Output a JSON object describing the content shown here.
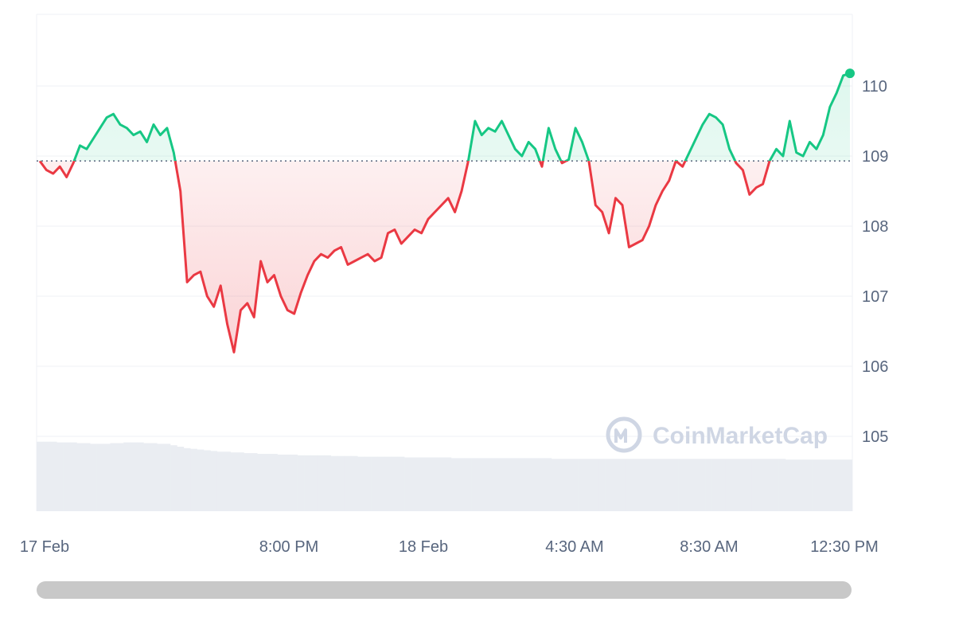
{
  "watermark": "CoinMarketCap",
  "colors": {
    "up": "#16c784",
    "down": "#ea3943",
    "baseline": "#58667e",
    "grid": "#eff2f5",
    "volume": "#eaedf2",
    "scrollbar": "#c8c8c8"
  },
  "chart_data": {
    "type": "line",
    "title": "",
    "xlabel": "",
    "ylabel": "",
    "ylim": [
      104.0,
      111.0
    ],
    "y_ticks": [
      "110",
      "109",
      "108",
      "107",
      "106",
      "105"
    ],
    "x_ticks": [
      "17 Feb",
      "8:00 PM",
      "18 Feb",
      "4:30 AM",
      "8:30 AM",
      "12:30 PM"
    ],
    "x_domain": [
      "2025-02-17T12:00",
      "2025-02-18T13:00"
    ],
    "baseline": 108.93,
    "grid": true,
    "legend": "none",
    "series": [
      {
        "values": [
          108.93,
          108.8,
          108.75,
          108.85,
          108.7,
          108.9,
          109.15,
          109.1,
          109.25,
          109.4,
          109.55,
          109.6,
          109.45,
          109.4,
          109.3,
          109.35,
          109.2,
          109.45,
          109.3,
          109.4,
          109.05,
          108.5,
          107.2,
          107.3,
          107.35,
          107.0,
          106.85,
          107.15,
          106.6,
          106.2,
          106.8,
          106.9,
          106.7,
          107.5,
          107.2,
          107.3,
          107.0,
          106.8,
          106.75,
          107.05,
          107.3,
          107.5,
          107.6,
          107.55,
          107.65,
          107.7,
          107.45,
          107.5,
          107.55,
          107.6,
          107.5,
          107.55,
          107.9,
          107.95,
          107.75,
          107.85,
          107.95,
          107.9,
          108.1,
          108.2,
          108.3,
          108.4,
          108.2,
          108.5,
          108.93,
          109.5,
          109.3,
          109.4,
          109.35,
          109.5,
          109.3,
          109.1,
          109.0,
          109.2,
          109.1,
          108.85,
          109.4,
          109.1,
          108.9,
          108.95,
          109.4,
          109.2,
          108.93,
          108.3,
          108.2,
          107.9,
          108.4,
          108.3,
          107.7,
          107.75,
          107.8,
          108.0,
          108.3,
          108.5,
          108.65,
          108.93,
          108.85,
          109.05,
          109.25,
          109.45,
          109.6,
          109.55,
          109.45,
          109.1,
          108.9,
          108.8,
          108.45,
          108.55,
          108.6,
          108.93,
          109.1,
          109.0,
          109.5,
          109.05,
          109.0,
          109.2,
          109.1,
          109.3,
          109.7,
          109.9,
          110.15,
          110.18
        ]
      }
    ],
    "volume": [
      0.097,
      0.097,
      0.097,
      0.096,
      0.096,
      0.096,
      0.095,
      0.095,
      0.094,
      0.094,
      0.094,
      0.095,
      0.095,
      0.096,
      0.096,
      0.096,
      0.095,
      0.095,
      0.094,
      0.094,
      0.092,
      0.09,
      0.088,
      0.087,
      0.086,
      0.085,
      0.084,
      0.083,
      0.083,
      0.082,
      0.082,
      0.081,
      0.081,
      0.08,
      0.08,
      0.08,
      0.079,
      0.079,
      0.079,
      0.078,
      0.078,
      0.078,
      0.078,
      0.078,
      0.077,
      0.077,
      0.077,
      0.077,
      0.076,
      0.076,
      0.076,
      0.076,
      0.076,
      0.076,
      0.076,
      0.075,
      0.075,
      0.075,
      0.075,
      0.075,
      0.075,
      0.075,
      0.074,
      0.074,
      0.074,
      0.074,
      0.074,
      0.074,
      0.074,
      0.074,
      0.074,
      0.074,
      0.074,
      0.074,
      0.074,
      0.074,
      0.074,
      0.073,
      0.073,
      0.073,
      0.073,
      0.073,
      0.073,
      0.073,
      0.073,
      0.073,
      0.073,
      0.073,
      0.073,
      0.073,
      0.073,
      0.073,
      0.073,
      0.073,
      0.073,
      0.073,
      0.073,
      0.073,
      0.073,
      0.073,
      0.073,
      0.073,
      0.073,
      0.073,
      0.073,
      0.073,
      0.073,
      0.073,
      0.073,
      0.073,
      0.073,
      0.073,
      0.072,
      0.072,
      0.072,
      0.072,
      0.072,
      0.072,
      0.072,
      0.072,
      0.072,
      0.072
    ]
  }
}
